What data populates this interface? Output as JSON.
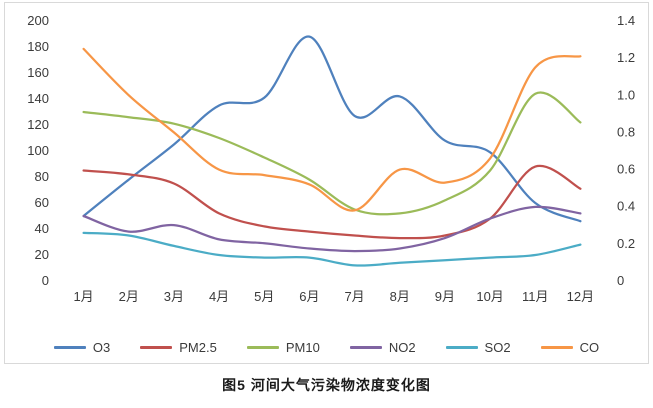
{
  "caption": "图5 河间大气污染物浓度变化图",
  "chart_data": {
    "type": "line",
    "title": "",
    "xlabel": "",
    "ylabel_left": "",
    "ylabel_right": "",
    "grid": false,
    "legend_position": "bottom",
    "smooth": true,
    "categories": [
      "1月",
      "2月",
      "3月",
      "4月",
      "5月",
      "6月",
      "7月",
      "8月",
      "9月",
      "10月",
      "11月",
      "12月"
    ],
    "left_axis": {
      "min": 0,
      "max": 200,
      "step": 20
    },
    "right_axis": {
      "min": 0,
      "max": 1.4,
      "step": 0.2
    },
    "series": [
      {
        "name": "O3",
        "color": "#4F81BD",
        "axis": "left",
        "values": [
          50,
          78,
          105,
          135,
          141,
          188,
          127,
          142,
          108,
          99,
          60,
          46
        ]
      },
      {
        "name": "PM2.5",
        "color": "#C0504D",
        "axis": "left",
        "values": [
          85,
          82,
          75,
          52,
          42,
          38,
          35,
          33,
          35,
          48,
          88,
          71
        ]
      },
      {
        "name": "PM10",
        "color": "#9BBB59",
        "axis": "left",
        "values": [
          130,
          126,
          121,
          110,
          95,
          78,
          55,
          52,
          62,
          85,
          144,
          122
        ]
      },
      {
        "name": "NO2",
        "color": "#8064A2",
        "axis": "left",
        "values": [
          50,
          38,
          43,
          32,
          29,
          25,
          23,
          25,
          33,
          48,
          57,
          52
        ]
      },
      {
        "name": "SO2",
        "color": "#4BACC6",
        "axis": "left",
        "values": [
          37,
          35,
          27,
          20,
          18,
          18,
          12,
          14,
          16,
          18,
          20,
          28
        ]
      },
      {
        "name": "CO",
        "color": "#F79646",
        "axis": "right",
        "values": [
          1.25,
          1.0,
          0.8,
          0.6,
          0.57,
          0.52,
          0.38,
          0.6,
          0.53,
          0.66,
          1.15,
          1.21
        ]
      }
    ]
  }
}
